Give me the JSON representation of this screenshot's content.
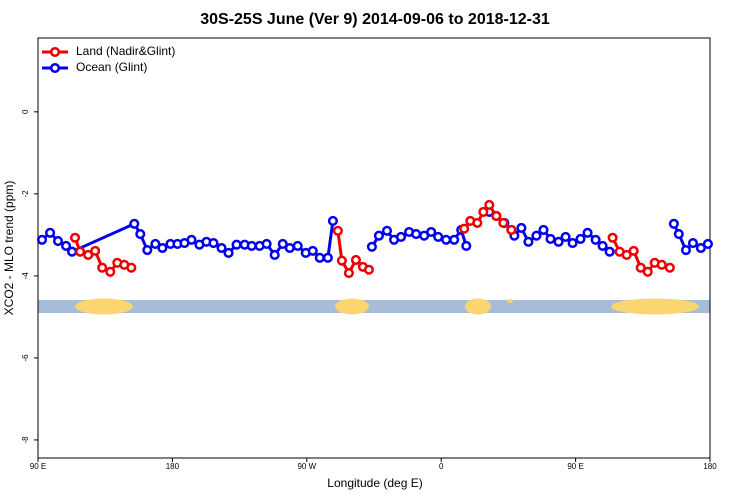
{
  "chart_data": {
    "type": "line",
    "title": "30S-25S June (Ver 9)   2014-09-06 to 2018-12-31",
    "x_label": "Longitude (deg E)",
    "y_label": "XCO2 - MLO trend (ppm)",
    "xlim": [
      90,
      540
    ],
    "ylim": [
      -8.44,
      1.8
    ],
    "xticks": [
      {
        "value": 90,
        "label": "90 E"
      },
      180,
      {
        "value": 270,
        "label": "90 W"
      },
      {
        "value": 360,
        "label": "0"
      },
      {
        "value": 450,
        "label": "90 E"
      },
      {
        "value": 540,
        "label": "180"
      }
    ],
    "yticks": [
      0,
      -2,
      -4,
      -6,
      -8
    ],
    "legend": "top-left",
    "series": [
      {
        "name": "Land (Nadir&Glint)",
        "color": "#ee0000",
        "x": [
          114.8,
          118.2,
          123.6,
          128.3,
          133.0,
          138.4,
          143.1,
          147.8,
          152.5,
          null,
          290.8,
          293.5,
          298.2,
          302.9,
          307.6,
          311.6,
          null,
          375.4,
          379.5,
          384.2,
          388.2,
          392.2,
          396.9,
          401.6,
          407.0,
          null,
          474.8,
          479.5,
          484.2,
          488.9,
          493.6,
          498.3,
          503.0,
          507.7,
          513.1
        ],
        "values": [
          -3.07,
          -3.41,
          -3.49,
          -3.39,
          -3.8,
          -3.9,
          -3.68,
          -3.73,
          -3.8,
          null,
          -2.9,
          -3.63,
          -3.93,
          -3.61,
          -3.78,
          -3.85,
          null,
          -2.85,
          -2.66,
          -2.71,
          -2.44,
          -2.27,
          -2.54,
          -2.71,
          -2.88,
          null,
          -3.07,
          -3.41,
          -3.49,
          -3.39,
          -3.8,
          -3.9,
          -3.68,
          -3.73,
          -3.8
        ]
      },
      {
        "name": "Ocean (Glint)",
        "color": "#0000ee",
        "x": [
          92.7,
          98.1,
          103.4,
          108.8,
          112.8,
          154.5,
          158.5,
          163.2,
          168.6,
          173.3,
          178.7,
          183.4,
          188.1,
          192.8,
          198.1,
          202.8,
          207.5,
          212.9,
          217.6,
          223.0,
          228.4,
          233.1,
          238.4,
          243.1,
          248.5,
          253.9,
          258.6,
          263.9,
          269.3,
          274.0,
          278.7,
          284.1,
          287.5,
          null,
          313.6,
          318.3,
          323.7,
          328.4,
          333.1,
          338.5,
          343.2,
          348.6,
          353.3,
          358.0,
          363.3,
          368.7,
          373.4,
          376.8,
          null,
          392.2,
          396.9,
          402.3,
          407.0,
          409.0,
          413.7,
          418.4,
          423.8,
          428.5,
          433.2,
          438.6,
          443.3,
          448.0,
          453.3,
          458.0,
          463.4,
          468.1,
          472.8,
          null,
          515.8,
          519.1,
          523.9,
          528.6,
          533.9,
          538.6
        ],
        "values": [
          -3.12,
          -2.95,
          -3.15,
          -3.27,
          -3.41,
          -2.73,
          -2.98,
          -3.37,
          -3.22,
          -3.32,
          -3.22,
          -3.22,
          -3.2,
          -3.12,
          -3.24,
          -3.17,
          -3.2,
          -3.32,
          -3.44,
          -3.24,
          -3.24,
          -3.27,
          -3.27,
          -3.22,
          -3.49,
          -3.22,
          -3.32,
          -3.27,
          -3.44,
          -3.39,
          -3.56,
          -3.56,
          -2.66,
          null,
          -3.29,
          -3.02,
          -2.9,
          -3.12,
          -3.05,
          -2.93,
          -2.98,
          -3.02,
          -2.93,
          -3.05,
          -3.12,
          -3.12,
          -2.88,
          -3.27,
          null,
          -2.44,
          -2.54,
          -2.71,
          -2.88,
          -3.02,
          -2.83,
          -3.17,
          -3.02,
          -2.88,
          -3.1,
          -3.17,
          -3.05,
          -3.2,
          -3.1,
          -2.95,
          -3.12,
          -3.27,
          -3.41,
          null,
          -2.73,
          -2.98,
          -3.37,
          -3.2,
          -3.32,
          -3.22
        ]
      }
    ]
  }
}
